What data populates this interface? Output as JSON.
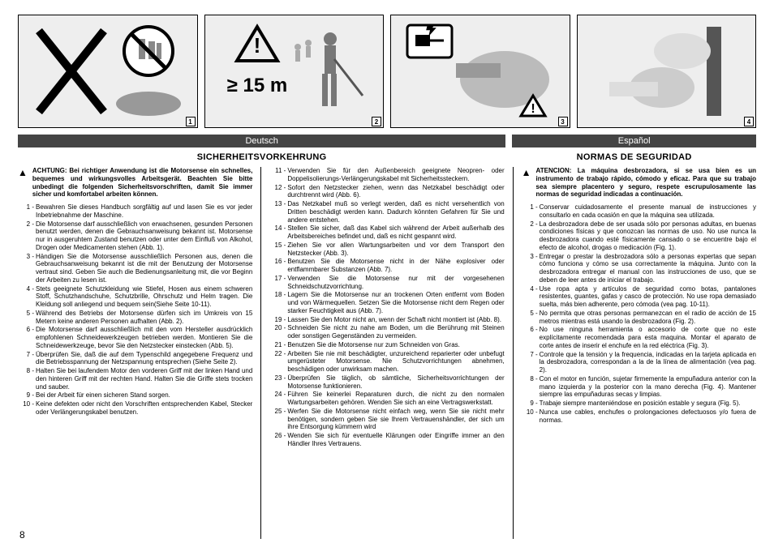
{
  "page_number": "8",
  "figures": [
    {
      "num": "1"
    },
    {
      "num": "2",
      "caption": "≥ 15 m"
    },
    {
      "num": "3"
    },
    {
      "num": "4"
    }
  ],
  "de": {
    "lang": "Deutsch",
    "heading": "SICHERHEITSVORKEHRUNG",
    "warn": "ACHTUNG: Bei richtiger Anwendung ist die Motorsense ein schnelles, bequemes und wirkungsvolles Arbeitsgerät. Beachten Sie bitte unbedingt die folgenden Sicherheitsvorschriften, damit Sie immer sicher und komfortabel arbeiten können.",
    "items_a": [
      {
        "n": "1 -",
        "t": "Bewahren Sie dieses Handbuch sorgfältig auf und lasen Sie es vor jeder Inbetriebnahme der Maschine."
      },
      {
        "n": "2 -",
        "t": "Die Motorsense darf ausschließlich von erwachsenen, gesunden Personen benutzt werden, denen die Gebrauchsanweisung bekannt ist.\nMotorsense nur in ausgeruhtem Zustand benutzen oder unter dem Einfluß von Alkohol, Drogen oder Medicamenten stehen (Abb. 1)."
      },
      {
        "n": "3 -",
        "t": "Händigen Sie die Motorsense ausschließlich Personen aus, denen die Gebrauchsanweisung bekannt ist die mit der Benutzung der Motorsense vertraut sind. Geben Sie auch die Bedienungsanleitung mit, die vor Beginn der Arbeiten zu lesen ist."
      },
      {
        "n": "4 -",
        "t": "Stets geeignete Schutzkleidung wie Stiefel, Hosen aus einem schweren Stoff, Schutzhandschuhe, Schutzbrille, Ohrschutz und Helm tragen.\nDie Kleidung soll anliegend und bequem sein(Siehe Seite 10-11)."
      },
      {
        "n": "5 -",
        "t": "Während des Betriebs der Motorsense dürfen sich im Umkreis von 15 Metern keine anderen Personen aufhalten (Abb. 2)."
      },
      {
        "n": "6 -",
        "t": "Die Motorsense darf ausschließlich mit den vom Hersteller ausdrücklich empfohlenen Schneidewerkzeugen betrieben werden. Montieren Sie die Schneidewerkzeuge, bevor Sie den Netzstecker einstecken (Abb. 5)."
      },
      {
        "n": "7 -",
        "t": "Überprüfen Sie, daß die auf dem Typenschild angegebene Frequenz und die Betriebsspannung der Netzspannung entsprechen (Siehe Seite 2)."
      },
      {
        "n": "8 -",
        "t": "Halten Sie bei laufendem Motor den vorderen Griff mit der linken Hand und den hinteren Griff mit der rechten Hand. Halten Sie die Griffe stets trocken und sauber."
      },
      {
        "n": "9 -",
        "t": "Bei der Arbeit für einen sicheren Stand sorgen."
      },
      {
        "n": "10 -",
        "t": "Keine defekten oder nicht den Vorschriften entsprechenden Kabel, Stecker oder Verlängerungskabel benutzen."
      }
    ],
    "items_b": [
      {
        "n": "11 -",
        "t": "Verwenden Sie für den Außenbereich geeignete Neopren- oder Doppelisolierungs-Verlängerungskabel mit Sicherheitssteckern."
      },
      {
        "n": "12 -",
        "t": "Sofort den Netzstecker ziehen, wenn das Netzkabel beschädigt oder durchtrennt wird (Abb. 6)."
      },
      {
        "n": "13 -",
        "t": "Das Netzkabel muß so verlegt werden, daß es nicht versehentlich von Dritten beschädigt werden kann. Dadurch könnten Gefahren für Sie und andere entstehen."
      },
      {
        "n": "14 -",
        "t": "Stellen Sie sicher, daß das Kabel sich während der Arbeit außerhalb des Arbeitsbereiches befindet und, daß es nicht gespannt wird."
      },
      {
        "n": "15 -",
        "t": "Ziehen Sie vor allen Wartungsarbeiten und vor dem Transport den Netzstecker (Abb. 3)."
      },
      {
        "n": "16 -",
        "t": "Benutzen Sie die Motorsense nicht in der Nähe explosiver oder entflammbarer Substanzen (Abb. 7)."
      },
      {
        "n": "17 -",
        "t": "Verwenden Sie die Motorsense nur mit der vorgesehenen Schneidschutzvorrichtung."
      },
      {
        "n": "18 -",
        "t": "Lagern Sie die Motorsense nur an trockenen Orten entfernt vom Boden und von Wärmequellen. Setzen Sie die Motorsense nicht dem Regen oder starker Feuchtigkeit aus (Abb. 7)."
      },
      {
        "n": "19 -",
        "t": "Lassen Sie den Motor nicht an, wenn der Schaft nicht montiert ist (Abb. 8)."
      },
      {
        "n": "20 -",
        "t": "Schneiden Sie nicht zu nahe am Boden, um die Berührung mit Steinen oder sonstigen Gegenständen zu vermeiden."
      },
      {
        "n": "21 -",
        "t": "Benutzen Sie die Motorsense nur zum Schneiden von Gras."
      },
      {
        "n": "22 -",
        "t": "Arbeiten Sie nie mit beschädigter, unzureichend reparierter oder unbefugt umgerüsteter Motorsense. Nie Schutzvorrichtungen abnehmen, beschädigen oder unwirksam machen."
      },
      {
        "n": "23 -",
        "t": "Überprüfen Sie täglich, ob sämtliche, Sicherheitsvorrichtungen der Motorsense funktionieren."
      },
      {
        "n": "24 -",
        "t": "Führen Sie keinerlei Reparaturen durch, die nicht zu den normalen Wartungsarbeiten gehören.\nWenden Sie sich an eine Vertragswerkstatt."
      },
      {
        "n": "25 -",
        "t": "Werfen Sie die Motorsense nicht einfach weg, wenn Sie sie nicht mehr benötigen, sondern geben Sie sie Ihrem Vertrauenshändler, der sich um ihre Entsorgung kümmern wird"
      },
      {
        "n": "26 -",
        "t": "Wenden Sie sich für eventuelle Klärungen oder Eingriffe immer an den Händler Ihres Vertrauens."
      }
    ]
  },
  "es": {
    "lang": "Español",
    "heading": "NORMAS DE SEGURIDAD",
    "warn": "ATENCION: La máquina desbrozadora, si se usa bien es un instrumento de trabajo rápido, cómodo y eficaz. Para que su trabajo sea siempre placentero y seguro, respete escrupulosamente las normas de seguridad indicadas a continuación.",
    "items": [
      {
        "n": "1 -",
        "t": "Conservar cuidadosamente el presente manual de instrucciones y consultarlo en cada ocasión en que la máquina sea utilizada."
      },
      {
        "n": "2 -",
        "t": "La desbrozadora debe de ser usada sólo por personas adultas, en buenas condiciones físicas y que conozcan las normas de uso.\nNo use nunca la desbrozadora cuando esté físicamente cansado o se encuentre bajo el efecto de alcohol, drogas o medicación (Fig. 1)."
      },
      {
        "n": "3 -",
        "t": "Entregar o prestar la desbrozadora sólo a personas expertas que sepan cómo funciona y cómo se usa correctamente la máquina. Junto con la desbrozadora entregar el manual con las instrucciones de uso, que se deben de leer antes de iniciar el trabajo."
      },
      {
        "n": "4 -",
        "t": "Use ropa apta y artículos de seguridad como botas, pantalones resistentes, guantes, gafas y casco de protección. No use ropa demasiado suelta, más bien adherente, pero cómoda (vea pag. 10-11)."
      },
      {
        "n": "5 -",
        "t": "No permita que otras personas permanezcan en el radio de acción de 15 metros mientras está usando la desbrozadora (Fig. 2)."
      },
      {
        "n": "6 -",
        "t": "No use ninguna herramienta o accesorio de corte que no este explícitamente recomendada para esta maquina. Montar el aparato de corte antes de inserir el enchufe en la red eléctrica (Fig. 3)."
      },
      {
        "n": "7 -",
        "t": "Controle que la tensión y la frequencia, indicadas en la tarjeta aplicada en la desbrozadora, correspondan a la de la línea de alimentación (vea pag. 2)."
      },
      {
        "n": "8 -",
        "t": "Con el motor en función, sujetar firmemente la empuñadura anterior con la mano izquierda y la posterior con la mano derecha (Fig. 4). Mantener siempre las empuñaduras secas y limpias."
      },
      {
        "n": "9 -",
        "t": "Trabaje siempre manteniéndose en posición estable y segura (Fig. 5)."
      },
      {
        "n": "10 -",
        "t": "Nunca use cables, enchufes o prolongaciones defectuosos y/o fuera de normas."
      }
    ]
  }
}
